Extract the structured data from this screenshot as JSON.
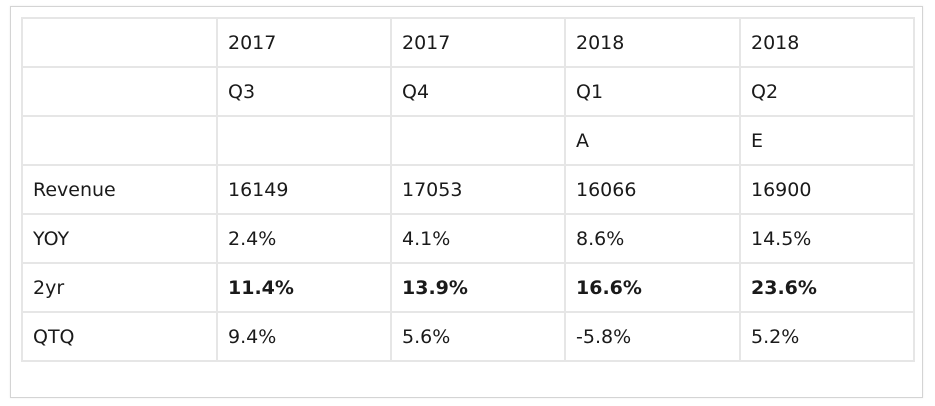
{
  "table": {
    "rows": [
      [
        "",
        "2017",
        "2017",
        "2018",
        "2018"
      ],
      [
        "",
        "Q3",
        "Q4",
        "Q1",
        "Q2"
      ],
      [
        "",
        "",
        "",
        "A",
        "E"
      ],
      [
        "Revenue",
        "16149",
        "17053",
        "16066",
        "16900"
      ],
      [
        "YOY",
        "2.4%",
        "4.1%",
        "8.6%",
        "14.5%"
      ],
      [
        "2yr",
        "11.4%",
        "13.9%",
        "16.6%",
        "23.6%"
      ],
      [
        "QTQ",
        "9.4%",
        "5.6%",
        "-5.8%",
        "5.2%"
      ]
    ],
    "bold_row": 5
  }
}
